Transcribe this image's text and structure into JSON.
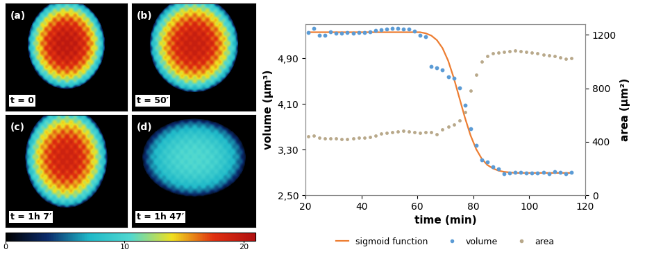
{
  "panels": [
    {
      "label": "(a)",
      "time": "t = 0"
    },
    {
      "label": "(b)",
      "time": "t = 50′"
    },
    {
      "label": "(c)",
      "time": "t = 1h 7′"
    },
    {
      "label": "(d)",
      "time": "t = 1h 47′"
    }
  ],
  "colorbar": {
    "range": [
      0,
      21
    ],
    "ticks": [
      0,
      10,
      20
    ]
  },
  "chart_data": {
    "type": "scatter",
    "x_label": "time (min)",
    "y_label": "volume (μm³)",
    "y2_label": "area (μm²)",
    "xlim": [
      20,
      120
    ],
    "xticks": [
      20,
      40,
      60,
      80,
      100,
      120
    ],
    "ylim": [
      2.5,
      5.5
    ],
    "yticks": [
      {
        "value": 2.5,
        "label": "2,50"
      },
      {
        "value": 3.3,
        "label": "3,30"
      },
      {
        "value": 4.1,
        "label": "4,10"
      },
      {
        "value": 4.9,
        "label": "4,90"
      }
    ],
    "y2lim": [
      0,
      1280
    ],
    "y2ticks": [
      0,
      400,
      800,
      1200
    ],
    "grid": false,
    "legend": "lower center",
    "x": [
      21,
      23,
      25,
      27,
      29,
      31,
      33,
      35,
      37,
      39,
      41,
      43,
      45,
      47,
      49,
      51,
      53,
      55,
      57,
      59,
      61,
      63,
      65,
      67,
      69,
      71,
      73,
      75,
      77,
      79,
      81,
      83,
      85,
      87,
      89,
      91,
      93,
      95,
      97,
      99,
      101,
      103,
      105,
      107,
      109,
      111,
      113,
      115
    ],
    "series": [
      {
        "name": "sigmoid function",
        "type": "line",
        "color": "#ed7d31",
        "line_style": "solid",
        "values": [
          5.36,
          5.36,
          5.36,
          5.36,
          5.36,
          5.36,
          5.36,
          5.36,
          5.36,
          5.36,
          5.36,
          5.36,
          5.36,
          5.36,
          5.36,
          5.36,
          5.36,
          5.36,
          5.36,
          5.36,
          5.36,
          5.34,
          5.3,
          5.22,
          5.08,
          4.86,
          4.56,
          4.21,
          3.86,
          3.55,
          3.31,
          3.14,
          3.03,
          2.97,
          2.93,
          2.91,
          2.9,
          2.89,
          2.89,
          2.89,
          2.89,
          2.89,
          2.89,
          2.89,
          2.89,
          2.89,
          2.89,
          2.89
        ]
      },
      {
        "name": "volume",
        "type": "scatter",
        "color": "#5b9bd5",
        "marker": "o",
        "values": [
          5.36,
          5.43,
          5.3,
          5.31,
          5.37,
          5.34,
          5.34,
          5.35,
          5.34,
          5.36,
          5.36,
          5.37,
          5.39,
          5.4,
          5.42,
          5.43,
          5.43,
          5.42,
          5.41,
          5.38,
          5.31,
          5.28,
          4.76,
          4.73,
          4.7,
          4.58,
          4.55,
          4.38,
          4.08,
          3.66,
          3.38,
          3.12,
          3.08,
          3.0,
          2.96,
          2.88,
          2.89,
          2.9,
          2.9,
          2.89,
          2.89,
          2.89,
          2.9,
          2.88,
          2.91,
          2.9,
          2.88,
          2.9
        ]
      },
      {
        "name": "area",
        "type": "scatter",
        "color": "#b8a88a",
        "marker": "o",
        "axis": "y2",
        "values": [
          440,
          445,
          430,
          425,
          425,
          425,
          420,
          420,
          425,
          430,
          430,
          435,
          445,
          460,
          465,
          470,
          475,
          480,
          475,
          470,
          465,
          470,
          470,
          455,
          490,
          515,
          530,
          560,
          620,
          780,
          900,
          1000,
          1040,
          1060,
          1070,
          1075,
          1080,
          1085,
          1080,
          1075,
          1070,
          1060,
          1050,
          1045,
          1040,
          1030,
          1020,
          1025
        ]
      }
    ]
  }
}
